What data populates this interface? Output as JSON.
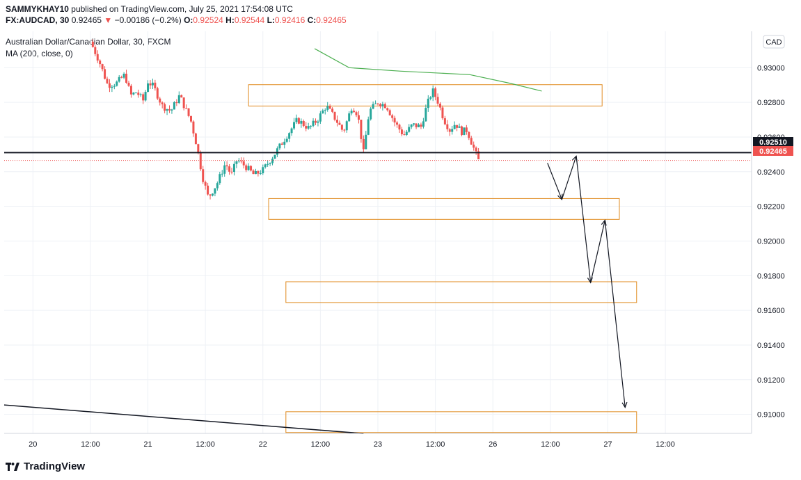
{
  "header": {
    "author": "SAMMYKHAY10",
    "published_text": "published on TradingView.com, July 25, 2021 17:54:08 UTC",
    "symbol": "FX:AUDCAD, 30",
    "last": "0.92465",
    "arrow": "▼",
    "change": "−0.00186 (−0.2%)",
    "o_label": "O:",
    "o_value": "0.92524",
    "h_label": "H:",
    "h_value": "0.92544",
    "l_label": "L:",
    "l_value": "0.92416",
    "c_label": "C:",
    "c_value": "0.92465",
    "pair_title": "Australian Dollar/Canadian Dollar, 30, FXCM",
    "indicator": "MA (200, close, 0)"
  },
  "currency_badge": "CAD",
  "footer": {
    "logo_text": "TradingView",
    "logo_icon": "tradingview-logo-icon"
  },
  "colors": {
    "up": "#26a69a",
    "down": "#ef5350",
    "ma": "#4caf50",
    "box": "#e08a1e",
    "hline": "#131722",
    "dotted": "#ef5350",
    "grid": "#eef1f6"
  },
  "chart_data": {
    "type": "candlestick",
    "title": "Australian Dollar/Canadian Dollar, 30, FXCM",
    "timeframe": "30",
    "y_axis": {
      "position": "right",
      "unit": "CAD",
      "ticks": [
        "0.93000",
        "0.92800",
        "0.92600",
        "0.92400",
        "0.92200",
        "0.92000",
        "0.91800",
        "0.91600",
        "0.91400",
        "0.91200",
        "0.91000"
      ],
      "range": [
        0.9089,
        0.9321
      ]
    },
    "x_axis": {
      "ticks": [
        "20",
        "12:00",
        "21",
        "12:00",
        "22",
        "12:00",
        "23",
        "12:00",
        "26",
        "12:00",
        "27",
        "12:00"
      ],
      "range": [
        -1.5,
        11.5
      ]
    },
    "price_labels": [
      {
        "value": "0.92510",
        "style": "black"
      },
      {
        "value": "0.92465",
        "style": "red"
      }
    ],
    "horizontal_line": 0.9251,
    "dotted_last_price": 0.92465,
    "moving_average": {
      "name": "MA (200, close, 0)",
      "points": [
        [
          3.9,
          0.9311
        ],
        [
          4.5,
          0.93
        ],
        [
          5.4,
          0.9298
        ],
        [
          6.6,
          0.9296
        ],
        [
          7.3,
          0.9291
        ],
        [
          7.85,
          0.92865
        ]
      ]
    },
    "zones": [
      {
        "x0": 2.75,
        "x1": 8.9,
        "y0": 0.92779,
        "y1": 0.92902
      },
      {
        "x0": 3.1,
        "x1": 9.2,
        "y0": 0.92125,
        "y1": 0.92245
      },
      {
        "x0": 3.4,
        "x1": 9.5,
        "y0": 0.91645,
        "y1": 0.91765
      },
      {
        "x0": 3.4,
        "x1": 9.5,
        "y0": 0.90895,
        "y1": 0.91015
      }
    ],
    "projection_path": [
      [
        7.95,
        0.9245
      ],
      [
        8.2,
        0.9224
      ],
      [
        8.45,
        0.9249
      ],
      [
        8.7,
        0.9176
      ],
      [
        8.95,
        0.9212
      ],
      [
        9.3,
        0.9104
      ]
    ],
    "trendline": [
      [
        -1.5,
        0.91054
      ],
      [
        4.75,
        0.90889
      ]
    ],
    "candle_anchors": [
      [
        0.0,
        0.9315
      ],
      [
        0.15,
        0.9304
      ],
      [
        0.3,
        0.929
      ],
      [
        0.45,
        0.9291
      ],
      [
        0.6,
        0.9296
      ],
      [
        0.7,
        0.9284
      ],
      [
        0.8,
        0.9286
      ],
      [
        0.92,
        0.9281
      ],
      [
        1.0,
        0.9292
      ],
      [
        1.1,
        0.9289
      ],
      [
        1.25,
        0.9278
      ],
      [
        1.4,
        0.9275
      ],
      [
        1.55,
        0.9284
      ],
      [
        1.75,
        0.9269
      ],
      [
        1.85,
        0.9255
      ],
      [
        1.95,
        0.9237
      ],
      [
        2.05,
        0.9225
      ],
      [
        2.2,
        0.9233
      ],
      [
        2.35,
        0.9245
      ],
      [
        2.45,
        0.9238
      ],
      [
        2.55,
        0.9247
      ],
      [
        2.7,
        0.9243
      ],
      [
        2.85,
        0.9238
      ],
      [
        3.0,
        0.9241
      ],
      [
        3.2,
        0.925
      ],
      [
        3.4,
        0.926
      ],
      [
        3.6,
        0.927
      ],
      [
        3.8,
        0.9265
      ],
      [
        3.95,
        0.927
      ],
      [
        4.1,
        0.9278
      ],
      [
        4.25,
        0.9271
      ],
      [
        4.4,
        0.9263
      ],
      [
        4.55,
        0.9278
      ],
      [
        4.65,
        0.9273
      ],
      [
        4.75,
        0.9251
      ],
      [
        4.85,
        0.9275
      ],
      [
        5.0,
        0.928
      ],
      [
        5.15,
        0.9278
      ],
      [
        5.3,
        0.9268
      ],
      [
        5.45,
        0.9261
      ],
      [
        5.6,
        0.9267
      ],
      [
        5.75,
        0.9266
      ],
      [
        5.85,
        0.9278
      ],
      [
        5.95,
        0.9287
      ],
      [
        6.05,
        0.928
      ],
      [
        6.15,
        0.927
      ],
      [
        6.25,
        0.9264
      ],
      [
        6.35,
        0.9268
      ],
      [
        6.45,
        0.9263
      ],
      [
        6.55,
        0.9264
      ],
      [
        6.65,
        0.9255
      ],
      [
        6.75,
        0.92465
      ]
    ]
  }
}
